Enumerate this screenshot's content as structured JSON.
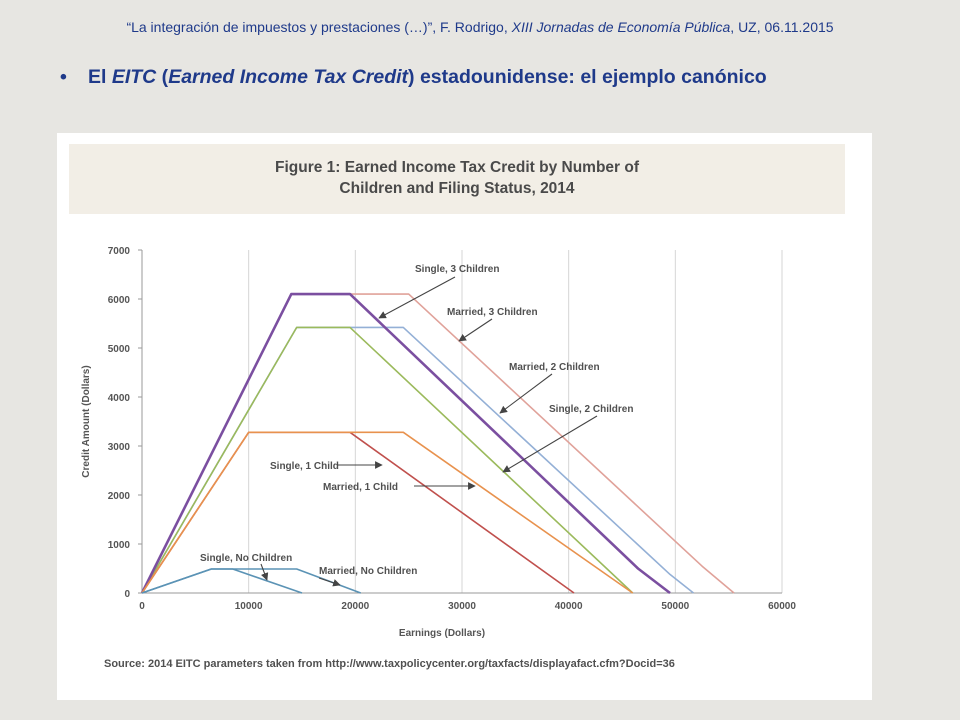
{
  "header": {
    "part1": "“La integración de impuestos y prestaciones (…)”, F. Rodrigo, ",
    "event": "XIII Jornadas de Economía Pública",
    "part2": ", UZ, 06.11.2015"
  },
  "bullet": {
    "pre": "El ",
    "eitc": "EITC",
    "open": " (",
    "full": "Earned Income Tax Credit",
    "post": ") estadounidense: el ejemplo canónico"
  },
  "colors": {
    "header_text": "#1f3a8a",
    "slide_bg": "#e7e6e2",
    "title_band": "#f2eee6",
    "single_3": "#7b4fa0",
    "married_3": "#e0a29a",
    "married_2": "#94b0d6",
    "single_2": "#9bba5c",
    "single_1": "#e8924e",
    "married_1": "#c0504d",
    "single_0": "#5b93b5",
    "married_0": "#5b93b5"
  },
  "chart_data": {
    "type": "line",
    "title": "Figure 1: Earned Income Tax Credit by Number of Children and Filing Status, 2014",
    "title_lines": [
      "Figure 1: Earned Income Tax Credit by Number of",
      "Children and Filing Status, 2014"
    ],
    "xlabel": "Earnings (Dollars)",
    "ylabel": "Credit Amount (Dollars)",
    "xlim": [
      0,
      60000
    ],
    "ylim": [
      0,
      7000
    ],
    "xticks": [
      0,
      10000,
      20000,
      30000,
      40000,
      50000,
      60000
    ],
    "yticks": [
      0,
      1000,
      2000,
      3000,
      4000,
      5000,
      6000,
      7000
    ],
    "grid": "vertical",
    "source": "Source: 2014 EITC parameters taken from http://www.taxpolicycenter.org/taxfacts/displayafact.cfm?Docid=36",
    "series": [
      {
        "name": "Married, 3 Children",
        "color_key": "married_3",
        "width": 1.6,
        "x": [
          0,
          14000,
          25000,
          52500,
          55500
        ],
        "y": [
          0,
          6100,
          6100,
          550,
          0
        ]
      },
      {
        "name": "Married, 2 Children",
        "color_key": "married_2",
        "width": 1.6,
        "x": [
          0,
          14500,
          24500,
          49500,
          51700
        ],
        "y": [
          0,
          5420,
          5420,
          380,
          0
        ]
      },
      {
        "name": "Single, 2 Children",
        "color_key": "single_2",
        "width": 1.6,
        "x": [
          0,
          14500,
          19500,
          46000
        ],
        "y": [
          0,
          5420,
          5420,
          0
        ]
      },
      {
        "name": "Single, 3 Children",
        "color_key": "single_3",
        "width": 2.6,
        "x": [
          0,
          14000,
          19500,
          46500,
          49500
        ],
        "y": [
          0,
          6100,
          6100,
          500,
          0
        ]
      },
      {
        "name": "Married, 1 Child",
        "color_key": "married_1",
        "width": 1.6,
        "x": [
          0,
          10000,
          19500,
          40500
        ],
        "y": [
          0,
          3280,
          3280,
          0
        ]
      },
      {
        "name": "Single, 1 Child",
        "color_key": "single_1",
        "width": 1.6,
        "x": [
          0,
          10000,
          24500,
          46000
        ],
        "y": [
          0,
          3280,
          3280,
          0
        ]
      },
      {
        "name": "Single, No Children",
        "color_key": "single_0",
        "width": 1.6,
        "x": [
          0,
          6500,
          8500,
          15000
        ],
        "y": [
          0,
          490,
          490,
          0
        ]
      },
      {
        "name": "Married, No Children",
        "color_key": "married_0",
        "width": 1.6,
        "x": [
          0,
          6500,
          14500,
          20500
        ],
        "y": [
          0,
          490,
          490,
          0
        ]
      }
    ]
  }
}
